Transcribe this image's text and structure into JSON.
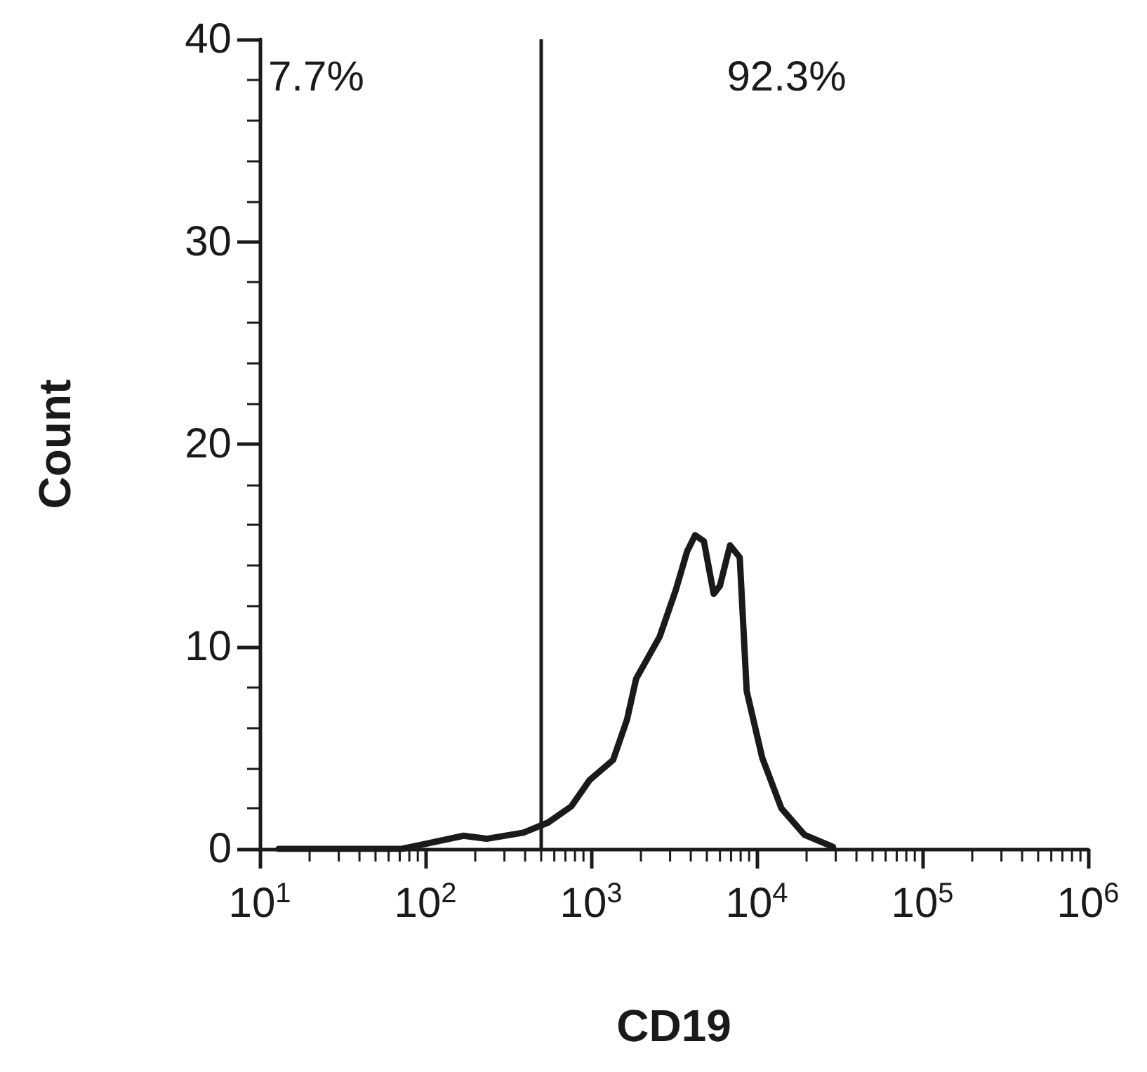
{
  "chart_data": {
    "type": "line",
    "xlabel": "CD19",
    "ylabel": "Count",
    "log": "x",
    "marker": "none",
    "xlim": [
      10,
      1000000
    ],
    "xticks": [
      {
        "value": 10,
        "label": "10$^{1}$"
      },
      {
        "value": 100,
        "label": "10$^{2}$"
      },
      {
        "value": 1000,
        "label": "10$^{3}$"
      },
      {
        "value": 10000,
        "label": "10$^{4}$"
      },
      {
        "value": 100000,
        "label": "10$^{5}$"
      },
      {
        "value": 1000000,
        "label": "10$^{6}$"
      }
    ],
    "ylim": [
      0,
      40
    ],
    "yticks": [
      0,
      10,
      20,
      30,
      40
    ],
    "series": [
      {
        "color": "#1a1a1a",
        "x": [
          13,
          33,
          72,
          107,
          170,
          234,
          390,
          550,
          760,
          980,
          1360,
          1650,
          1870,
          2600,
          3250,
          3800,
          4250,
          4800,
          5500,
          6000,
          6900,
          7900,
          8700,
          10800,
          14100,
          19400,
          28900
        ],
        "values": [
          0,
          0,
          0,
          0.3,
          0.65,
          0.5,
          0.8,
          1.3,
          2.1,
          3.4,
          4.4,
          6.4,
          8.4,
          10.5,
          12.8,
          14.7,
          15.5,
          15.2,
          12.6,
          13.0,
          15.0,
          14.4,
          7.8,
          4.5,
          2.0,
          0.7,
          0.1
        ]
      }
    ],
    "ref_lines": [
      {
        "axis": "x",
        "value": 500,
        "color": "#1a1a1a"
      }
    ],
    "annotations": [
      "7.7%",
      "92.3%"
    ]
  }
}
